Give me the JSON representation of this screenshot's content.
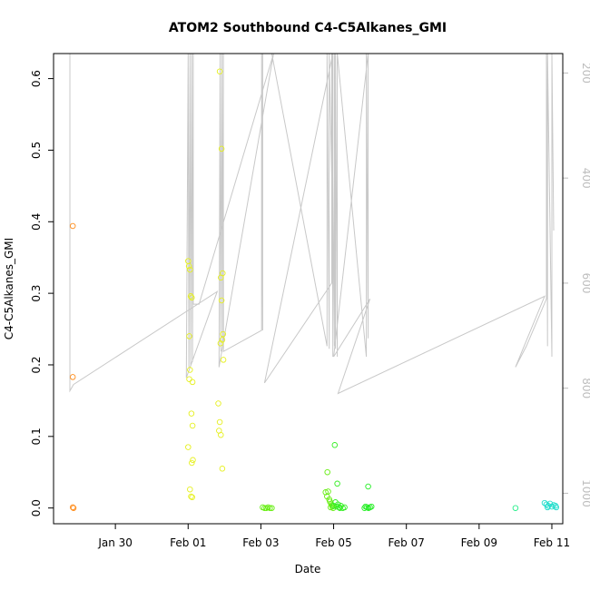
{
  "chart_data": {
    "type": "scatter",
    "title": "ATOM2 Southbound C4-C5Alkanes_GMI",
    "xlabel": "Date",
    "ylabel": "C4-C5Alkanes_GMI",
    "x_unit": "days since Jan 28 00:00 (Jan 30 = 2)",
    "xlim": [
      0.3,
      14.3
    ],
    "ylim": [
      -0.022,
      0.635
    ],
    "y2lim": [
      1058,
      163
    ],
    "x_ticks": [
      {
        "value": 2,
        "label": "Jan 30"
      },
      {
        "value": 4,
        "label": "Feb 01"
      },
      {
        "value": 6,
        "label": "Feb 03"
      },
      {
        "value": 8,
        "label": "Feb 05"
      },
      {
        "value": 10,
        "label": "Feb 07"
      },
      {
        "value": 12,
        "label": "Feb 09"
      },
      {
        "value": 14,
        "label": "Feb 11"
      }
    ],
    "y_ticks": [
      {
        "value": 0.0,
        "label": "0.0"
      },
      {
        "value": 0.1,
        "label": "0.1"
      },
      {
        "value": 0.2,
        "label": "0.2"
      },
      {
        "value": 0.3,
        "label": "0.3"
      },
      {
        "value": 0.4,
        "label": "0.4"
      },
      {
        "value": 0.5,
        "label": "0.5"
      },
      {
        "value": 0.6,
        "label": "0.6"
      }
    ],
    "y2_ticks": [
      {
        "value": 200,
        "label": "200"
      },
      {
        "value": 400,
        "label": "400"
      },
      {
        "value": 600,
        "label": "600"
      },
      {
        "value": 800,
        "label": "800"
      },
      {
        "value": 1000,
        "label": "1000"
      }
    ],
    "grid": false,
    "points": [
      {
        "x": 0.83,
        "y": 0.394,
        "color": "#ff8c1a"
      },
      {
        "x": 0.83,
        "y": 0.183,
        "color": "#ff8c1a"
      },
      {
        "x": 0.83,
        "y": 0.001,
        "color": "#ff8c1a"
      },
      {
        "x": 0.85,
        "y": 0.0,
        "color": "#ff8c1a"
      },
      {
        "x": 4.0,
        "y": 0.345,
        "color": "#e6f020"
      },
      {
        "x": 4.02,
        "y": 0.338,
        "color": "#e6f020"
      },
      {
        "x": 4.05,
        "y": 0.333,
        "color": "#e6f020"
      },
      {
        "x": 4.07,
        "y": 0.296,
        "color": "#e6f020"
      },
      {
        "x": 4.1,
        "y": 0.294,
        "color": "#e6f020"
      },
      {
        "x": 4.03,
        "y": 0.24,
        "color": "#e6f020"
      },
      {
        "x": 4.05,
        "y": 0.193,
        "color": "#e6f020"
      },
      {
        "x": 4.03,
        "y": 0.18,
        "color": "#e6f020"
      },
      {
        "x": 4.12,
        "y": 0.176,
        "color": "#e6f020"
      },
      {
        "x": 4.09,
        "y": 0.132,
        "color": "#e6f020"
      },
      {
        "x": 4.12,
        "y": 0.115,
        "color": "#e6f020"
      },
      {
        "x": 4.0,
        "y": 0.085,
        "color": "#e6f020"
      },
      {
        "x": 4.13,
        "y": 0.067,
        "color": "#e6f020"
      },
      {
        "x": 4.1,
        "y": 0.063,
        "color": "#e6f020"
      },
      {
        "x": 4.05,
        "y": 0.026,
        "color": "#e6f020"
      },
      {
        "x": 4.08,
        "y": 0.016,
        "color": "#e6f020"
      },
      {
        "x": 4.11,
        "y": 0.015,
        "color": "#e6f020"
      },
      {
        "x": 4.87,
        "y": 0.61,
        "color": "#e6f020"
      },
      {
        "x": 4.92,
        "y": 0.502,
        "color": "#e6f020"
      },
      {
        "x": 4.95,
        "y": 0.328,
        "color": "#e6f020"
      },
      {
        "x": 4.9,
        "y": 0.322,
        "color": "#e6f020"
      },
      {
        "x": 4.92,
        "y": 0.29,
        "color": "#e6f020"
      },
      {
        "x": 4.96,
        "y": 0.243,
        "color": "#e6f020"
      },
      {
        "x": 4.94,
        "y": 0.235,
        "color": "#e6f020"
      },
      {
        "x": 4.89,
        "y": 0.23,
        "color": "#e6f020"
      },
      {
        "x": 4.97,
        "y": 0.207,
        "color": "#e6f020"
      },
      {
        "x": 4.83,
        "y": 0.146,
        "color": "#e6f020"
      },
      {
        "x": 4.87,
        "y": 0.12,
        "color": "#e6f020"
      },
      {
        "x": 4.85,
        "y": 0.108,
        "color": "#e6f020"
      },
      {
        "x": 4.9,
        "y": 0.102,
        "color": "#e6f020"
      },
      {
        "x": 4.94,
        "y": 0.055,
        "color": "#e6f020"
      },
      {
        "x": 6.05,
        "y": 0.001,
        "color": "#66ee11"
      },
      {
        "x": 6.1,
        "y": 0.0,
        "color": "#66ee11"
      },
      {
        "x": 6.15,
        "y": 0.0,
        "color": "#66ee11"
      },
      {
        "x": 6.2,
        "y": 0.001,
        "color": "#66ee11"
      },
      {
        "x": 6.25,
        "y": 0.0,
        "color": "#66ee11"
      },
      {
        "x": 6.3,
        "y": 0.0,
        "color": "#66ee11"
      },
      {
        "x": 7.83,
        "y": 0.05,
        "color": "#66ee11"
      },
      {
        "x": 7.78,
        "y": 0.022,
        "color": "#66ee11"
      },
      {
        "x": 7.85,
        "y": 0.023,
        "color": "#66ee11"
      },
      {
        "x": 7.82,
        "y": 0.016,
        "color": "#66ee11"
      },
      {
        "x": 7.88,
        "y": 0.012,
        "color": "#66ee11"
      },
      {
        "x": 7.9,
        "y": 0.009,
        "color": "#66ee11"
      },
      {
        "x": 7.93,
        "y": 0.006,
        "color": "#66ee11"
      },
      {
        "x": 7.95,
        "y": 0.004,
        "color": "#66ee11"
      },
      {
        "x": 7.97,
        "y": 0.002,
        "color": "#66ee11"
      },
      {
        "x": 7.99,
        "y": 0.0,
        "color": "#66ee11"
      },
      {
        "x": 7.92,
        "y": 0.001,
        "color": "#66ee11"
      },
      {
        "x": 8.03,
        "y": 0.088,
        "color": "#33ee22"
      },
      {
        "x": 8.1,
        "y": 0.034,
        "color": "#33ee22"
      },
      {
        "x": 8.05,
        "y": 0.008,
        "color": "#33ee22"
      },
      {
        "x": 8.12,
        "y": 0.005,
        "color": "#33ee22"
      },
      {
        "x": 8.0,
        "y": 0.003,
        "color": "#33ee22"
      },
      {
        "x": 8.08,
        "y": 0.002,
        "color": "#33ee22"
      },
      {
        "x": 8.15,
        "y": 0.001,
        "color": "#33ee22"
      },
      {
        "x": 8.2,
        "y": 0.003,
        "color": "#33ee22"
      },
      {
        "x": 8.25,
        "y": 0.0,
        "color": "#33ee22"
      },
      {
        "x": 8.3,
        "y": 0.001,
        "color": "#33ee22"
      },
      {
        "x": 8.17,
        "y": 0.0,
        "color": "#33ee22"
      },
      {
        "x": 8.95,
        "y": 0.03,
        "color": "#22ee22"
      },
      {
        "x": 8.88,
        "y": 0.002,
        "color": "#22ee22"
      },
      {
        "x": 8.92,
        "y": 0.001,
        "color": "#22ee22"
      },
      {
        "x": 8.96,
        "y": 0.0,
        "color": "#22ee22"
      },
      {
        "x": 9.0,
        "y": 0.001,
        "color": "#22ee22"
      },
      {
        "x": 9.04,
        "y": 0.002,
        "color": "#22ee22"
      },
      {
        "x": 8.85,
        "y": 0.0,
        "color": "#22ee22"
      },
      {
        "x": 13.0,
        "y": 0.0,
        "color": "#22ee88"
      },
      {
        "x": 13.8,
        "y": 0.007,
        "color": "#22ddcc"
      },
      {
        "x": 13.85,
        "y": 0.005,
        "color": "#22ddcc"
      },
      {
        "x": 13.9,
        "y": 0.003,
        "color": "#22ddcc"
      },
      {
        "x": 13.95,
        "y": 0.006,
        "color": "#22ddcc"
      },
      {
        "x": 14.0,
        "y": 0.002,
        "color": "#22ddcc"
      },
      {
        "x": 14.05,
        "y": 0.004,
        "color": "#22ddcc"
      },
      {
        "x": 13.88,
        "y": 0.001,
        "color": "#22ddcc"
      },
      {
        "x": 14.1,
        "y": 0.003,
        "color": "#22ddcc"
      },
      {
        "x": 14.12,
        "y": 0.001,
        "color": "#22ddcc"
      }
    ],
    "altitude_track": {
      "color": "#c8c8c8",
      "axis": "right",
      "x": [
        0.75,
        0.75,
        0.85,
        4.8,
        3.95,
        4.0,
        4.02,
        4.05,
        4.07,
        4.1,
        4.12,
        4.14,
        4.14,
        4.3,
        6.35,
        4.85,
        4.88,
        4.9,
        4.93,
        4.95,
        4.97,
        4.97,
        6.02,
        6.02,
        6.05,
        6.05,
        6.3,
        7.82,
        7.82,
        7.88,
        7.88,
        7.96,
        7.96,
        7.98,
        7.98,
        6.1,
        7.95,
        7.95,
        8.02,
        8.02,
        8.05,
        8.05,
        8.1,
        8.1,
        8.9,
        8.9,
        8.95,
        8.95,
        8.0,
        9.0,
        8.12,
        13.8,
        13.0,
        13.3,
        13.85,
        13.85,
        13.88,
        13.88,
        14.0,
        14.0,
        14.05
      ],
      "y": [
        163,
        805,
        793,
        616,
        780,
        163,
        760,
        163,
        755,
        163,
        750,
        163,
        640,
        640,
        163,
        760,
        163,
        730,
        163,
        720,
        163,
        730,
        690,
        163,
        690,
        163,
        163,
        720,
        163,
        725,
        163,
        430,
        163,
        740,
        163,
        790,
        600,
        163,
        720,
        163,
        725,
        163,
        740,
        163,
        740,
        163,
        705,
        163,
        740,
        630,
        810,
        625,
        760,
        720,
        630,
        163,
        720,
        163,
        740,
        163,
        500
      ]
    }
  }
}
